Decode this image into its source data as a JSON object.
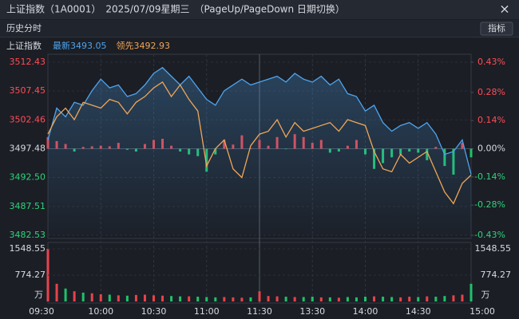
{
  "window": {
    "title": "上证指数（1A0001）　2025/07/09星期三　（PageUp/PageDown 日期切换）",
    "close": "×"
  },
  "toolbar": {
    "tab": "历史分时",
    "button": "指标"
  },
  "chart_data": {
    "type": "line",
    "title": "上证指数",
    "categories": [
      "09:30",
      null,
      null,
      null,
      null,
      null,
      "10:00",
      null,
      null,
      null,
      null,
      null,
      "10:30",
      null,
      null,
      null,
      null,
      null,
      "11:00",
      null,
      null,
      null,
      null,
      null,
      "11:30",
      null,
      null,
      null,
      null,
      null,
      "13:30",
      null,
      null,
      null,
      null,
      null,
      "14:00",
      null,
      null,
      null,
      null,
      null,
      "14:30",
      null,
      null,
      null,
      null,
      null,
      "15:00"
    ],
    "series": [
      {
        "name": "最新3493.05",
        "color": "#4ea4ee",
        "values": [
          3499.0,
          3504.5,
          3503.0,
          3505.5,
          3505.0,
          3507.5,
          3509.5,
          3508.0,
          3508.5,
          3506.5,
          3507.0,
          3508.5,
          3510.5,
          3511.5,
          3510.0,
          3508.5,
          3510.0,
          3508.0,
          3506.0,
          3505.0,
          3507.5,
          3508.5,
          3509.5,
          3508.5,
          3509.0,
          3509.5,
          3510.0,
          3509.0,
          3510.5,
          3509.5,
          3509.0,
          3510.0,
          3508.5,
          3509.5,
          3507.0,
          3506.5,
          3504.0,
          3505.0,
          3502.0,
          3500.5,
          3501.5,
          3502.0,
          3501.0,
          3502.0,
          3500.0,
          3496.5,
          3497.0,
          3499.0,
          3493.05
        ]
      },
      {
        "name": "领先3492.93",
        "color": "#f0a656",
        "values": [
          3500.0,
          3503.0,
          3504.5,
          3502.5,
          3505.5,
          3505.0,
          3504.5,
          3506.0,
          3505.5,
          3503.5,
          3505.5,
          3506.5,
          3508.0,
          3509.0,
          3506.5,
          3508.5,
          3506.0,
          3504.0,
          3494.5,
          3497.5,
          3499.0,
          3494.0,
          3492.5,
          3498.0,
          3500.0,
          3500.5,
          3502.5,
          3499.5,
          3502.0,
          3500.5,
          3501.0,
          3501.5,
          3502.0,
          3500.5,
          3502.5,
          3502.0,
          3501.5,
          3497.0,
          3494.0,
          3493.5,
          3496.5,
          3495.0,
          3496.0,
          3497.0,
          3493.5,
          3490.0,
          3488.0,
          3491.5,
          3492.93
        ]
      }
    ],
    "bars": {
      "up_color": "#e8434a",
      "down_color": "#1ec26b",
      "values": [
        3499.5,
        3498.8,
        3498.3,
        3497.0,
        3497.8,
        3497.9,
        3498.0,
        3497.9,
        3498.5,
        3497.3,
        3497.0,
        3498.3,
        3499.0,
        3499.2,
        3498.0,
        3497.0,
        3496.5,
        3496.2,
        3493.5,
        3496.5,
        3499.0,
        3498.2,
        3499.8,
        3497.6,
        3499.0,
        3498.0,
        3499.5,
        3497.4,
        3500.0,
        3499.5,
        3498.5,
        3499.0,
        3496.8,
        3497.0,
        3498.0,
        3499.0,
        3496.5,
        3494.0,
        3495.0,
        3496.0,
        3496.5,
        3497.0,
        3496.8,
        3495.5,
        3497.8,
        3494.5,
        3493.0,
        3498.5,
        3496.0
      ]
    },
    "ylim": [
      3482.53,
      3512.43
    ],
    "yticks": [
      3512.43,
      3507.45,
      3502.46,
      3497.48,
      {
        "value": 3492.5,
        "label": "3492.50"
      },
      3487.51,
      3482.53
    ],
    "y2lim": [
      -0.43,
      0.43
    ],
    "y2ticks": [
      {
        "value": 0.43,
        "label": "0.43%"
      },
      {
        "value": 0.28,
        "label": "0.28%"
      },
      {
        "value": 0.14,
        "label": "0.14%"
      },
      {
        "value": 0,
        "label": "0.00%"
      },
      {
        "value": -0.14,
        "label": "-0.14%"
      },
      {
        "value": -0.28,
        "label": "-0.28%"
      },
      {
        "value": -0.43,
        "label": "-0.43%"
      }
    ],
    "grid": true,
    "volume": {
      "unit": "万",
      "ylim": [
        0,
        1548.55
      ],
      "yticks": [
        774.27,
        1548.55
      ],
      "values": [
        1548.55,
        520,
        380,
        300,
        260,
        240,
        210,
        200,
        180,
        170,
        190,
        200,
        180,
        170,
        160,
        150,
        150,
        140,
        130,
        120,
        130,
        120,
        110,
        120,
        300,
        160,
        150,
        140,
        130,
        130,
        140,
        120,
        120,
        110,
        130,
        120,
        140,
        150,
        140,
        130,
        120,
        140,
        130,
        150,
        140,
        160,
        180,
        200,
        520
      ]
    }
  }
}
